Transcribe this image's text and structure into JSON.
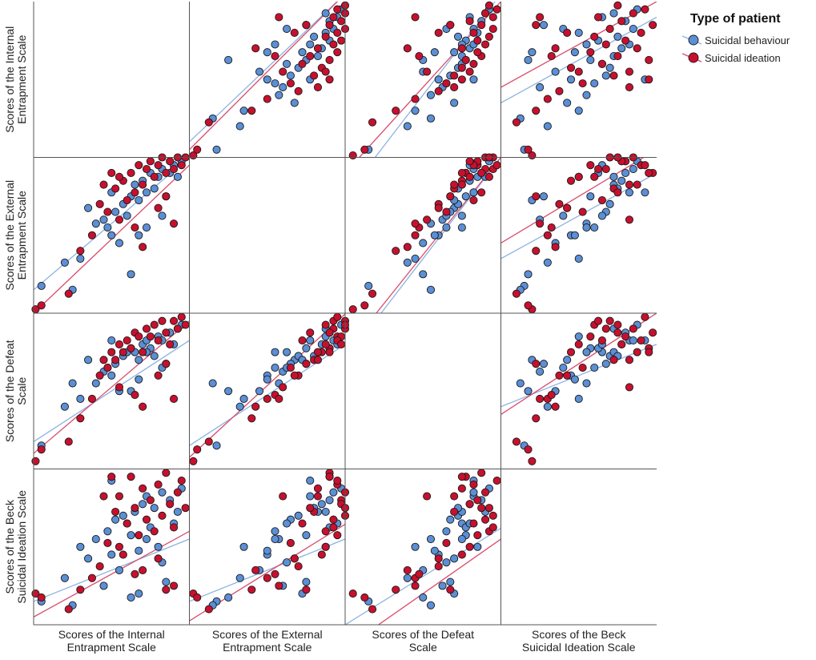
{
  "chart_data": {
    "type": "scatter",
    "subtype": "scatterplot-matrix",
    "variables": [
      {
        "id": "internal",
        "label_lines": [
          "Scores of the Internal",
          "Entrapment Scale"
        ]
      },
      {
        "id": "external",
        "label_lines": [
          "Scores of the External",
          "Entrapment Scale"
        ]
      },
      {
        "id": "defeat",
        "label_lines": [
          "Scores of the Defeat",
          "Scale"
        ]
      },
      {
        "id": "beck",
        "label_lines": [
          "Scores of the Beck",
          "Suicidal Ideation Scale"
        ]
      }
    ],
    "ranges": {
      "internal": [
        0,
        40
      ],
      "external": [
        0,
        40
      ],
      "defeat": [
        0,
        40
      ],
      "beck": [
        0,
        40
      ]
    },
    "legend": {
      "title": "Type of patient",
      "position": "top-right"
    },
    "grid": false,
    "series": [
      {
        "name": "Suicidal behaviour",
        "color": "#5b8fd6",
        "line_color": "#8cb4e3",
        "fits": {
          "internal|external": [
            6.0,
            0.85
          ],
          "internal|defeat": [
            7.0,
            0.65
          ],
          "internal|beck": [
            6.0,
            0.4
          ],
          "external|internal": [
            4.0,
            0.95
          ],
          "external|defeat": [
            6.0,
            0.65
          ],
          "external|beck": [
            6.0,
            0.4
          ],
          "defeat|internal": [
            -10.0,
            1.3
          ],
          "defeat|external": [
            -12.0,
            1.3
          ],
          "defeat|beck": [
            0.0,
            0.62
          ],
          "beck|internal": [
            14.0,
            0.55
          ],
          "beck|external": [
            14.0,
            0.55
          ],
          "beck|defeat": [
            16.0,
            0.4
          ]
        },
        "points": [
          {
            "internal": 2.0,
            "external": 7.0,
            "defeat": 6.0,
            "beck": 6.0
          },
          {
            "internal": 8.0,
            "external": 13.0,
            "defeat": 16.0,
            "beck": 12.0
          },
          {
            "internal": 10.0,
            "external": 6.0,
            "defeat": 22.0,
            "beck": 5.0
          },
          {
            "internal": 12.0,
            "external": 14.0,
            "defeat": 18.0,
            "beck": 20.0
          },
          {
            "internal": 14.0,
            "external": 27.0,
            "defeat": 28.0,
            "beck": 17.0
          },
          {
            "internal": 16.0,
            "external": 23.0,
            "defeat": 22.0,
            "beck": 22.0
          },
          {
            "internal": 18.0,
            "external": 24.0,
            "defeat": 25.0,
            "beck": 10.0
          },
          {
            "internal": 19.0,
            "external": 22.0,
            "defeat": 26.0,
            "beck": 24.0
          },
          {
            "internal": 20.0,
            "external": 20.0,
            "defeat": 24.0,
            "beck": 18.0
          },
          {
            "internal": 21.0,
            "external": 26.0,
            "defeat": 27.0,
            "beck": 27.0
          },
          {
            "internal": 22.0,
            "external": 18.0,
            "defeat": 20.0,
            "beck": 14.0
          },
          {
            "internal": 23.0,
            "external": 28.0,
            "defeat": 29.0,
            "beck": 28.0
          },
          {
            "internal": 24.0,
            "external": 25.0,
            "defeat": 30.0,
            "beck": 26.0
          },
          {
            "internal": 25.0,
            "external": 30.0,
            "defeat": 31.0,
            "beck": 23.0
          },
          {
            "internal": 26.0,
            "external": 33.0,
            "defeat": 30.0,
            "beck": 29.0
          },
          {
            "internal": 27.0,
            "external": 29.0,
            "defeat": 28.0,
            "beck": 8.0
          },
          {
            "internal": 28.0,
            "external": 34.0,
            "defeat": 32.0,
            "beck": 31.0
          },
          {
            "internal": 29.0,
            "external": 31.0,
            "defeat": 33.0,
            "beck": 33.0
          },
          {
            "internal": 30.0,
            "external": 36.0,
            "defeat": 31.0,
            "beck": 25.0
          },
          {
            "internal": 31.0,
            "external": 32.0,
            "defeat": 29.0,
            "beck": 30.0
          },
          {
            "internal": 32.0,
            "external": 35.0,
            "defeat": 34.0,
            "beck": 20.0
          },
          {
            "internal": 33.0,
            "external": 37.0,
            "defeat": 33.0,
            "beck": 34.0
          },
          {
            "internal": 34.0,
            "external": 30.0,
            "defeat": 27.0,
            "beck": 11.0
          },
          {
            "internal": 35.0,
            "external": 36.0,
            "defeat": 35.0,
            "beck": 32.0
          },
          {
            "internal": 36.0,
            "external": 38.0,
            "defeat": 32.0,
            "beck": 26.0
          },
          {
            "internal": 37.0,
            "external": 35.0,
            "defeat": 36.0,
            "beck": 29.0
          },
          {
            "internal": 38.0,
            "external": 39.0,
            "defeat": 37.0,
            "beck": 35.0
          },
          {
            "internal": 33.0,
            "external": 25.0,
            "defeat": 26.0,
            "beck": 16.0
          },
          {
            "internal": 27.0,
            "external": 20.0,
            "defeat": 23.0,
            "beck": 19.0
          },
          {
            "internal": 20.0,
            "external": 31.0,
            "defeat": 33.0,
            "beck": 37.0
          },
          {
            "internal": 25.0,
            "external": 10.0,
            "defeat": 20.0,
            "beck": 7.0
          },
          {
            "internal": 29.0,
            "external": 22.0,
            "defeat": 30.0,
            "beck": 22.0
          }
        ]
      },
      {
        "name": "Suicidal ideation",
        "color": "#c8102e",
        "line_color": "#d94c6b",
        "fits": {
          "internal|external": [
            0.0,
            0.95
          ],
          "internal|defeat": [
            4.0,
            0.85
          ],
          "internal|beck": [
            2.0,
            0.55
          ],
          "external|internal": [
            2.0,
            1.0
          ],
          "external|defeat": [
            3.0,
            0.92
          ],
          "external|beck": [
            1.0,
            0.62
          ],
          "defeat|internal": [
            -4.0,
            1.1
          ],
          "defeat|external": [
            -10.0,
            1.25
          ],
          "defeat|beck": [
            -6.0,
            0.7
          ],
          "beck|internal": [
            18.0,
            0.55
          ],
          "beck|external": [
            18.0,
            0.6
          ],
          "beck|defeat": [
            14.0,
            0.65
          ]
        },
        "points": [
          {
            "internal": 0.5,
            "external": 1.0,
            "defeat": 2.0,
            "beck": 8.0
          },
          {
            "internal": 2.0,
            "external": 2.0,
            "defeat": 5.0,
            "beck": 7.0
          },
          {
            "internal": 9.0,
            "external": 5.0,
            "defeat": 7.0,
            "beck": 4.0
          },
          {
            "internal": 12.0,
            "external": 16.0,
            "defeat": 13.0,
            "beck": 9.0
          },
          {
            "internal": 15.0,
            "external": 20.0,
            "defeat": 18.0,
            "beck": 12.0
          },
          {
            "internal": 17.0,
            "external": 28.0,
            "defeat": 24.0,
            "beck": 15.0
          },
          {
            "internal": 19.0,
            "external": 26.0,
            "defeat": 26.0,
            "beck": 21.0
          },
          {
            "internal": 21.0,
            "external": 32.0,
            "defeat": 28.0,
            "beck": 29.0
          },
          {
            "internal": 22.0,
            "external": 24.0,
            "defeat": 21.0,
            "beck": 33.0
          },
          {
            "internal": 23.0,
            "external": 34.0,
            "defeat": 30.0,
            "beck": 18.0
          },
          {
            "internal": 24.0,
            "external": 29.0,
            "defeat": 33.0,
            "beck": 26.0
          },
          {
            "internal": 25.0,
            "external": 36.0,
            "defeat": 31.0,
            "beck": 38.0
          },
          {
            "internal": 26.0,
            "external": 31.0,
            "defeat": 35.0,
            "beck": 30.0
          },
          {
            "internal": 27.0,
            "external": 38.0,
            "defeat": 34.0,
            "beck": 23.0
          },
          {
            "internal": 28.0,
            "external": 33.0,
            "defeat": 30.0,
            "beck": 35.0
          },
          {
            "internal": 29.0,
            "external": 37.0,
            "defeat": 36.0,
            "beck": 27.0
          },
          {
            "internal": 30.0,
            "external": 39.0,
            "defeat": 34.0,
            "beck": 32.0
          },
          {
            "internal": 31.0,
            "external": 35.0,
            "defeat": 37.0,
            "beck": 24.0
          },
          {
            "internal": 32.0,
            "external": 38.0,
            "defeat": 33.0,
            "beck": 36.0
          },
          {
            "internal": 33.0,
            "external": 40.0,
            "defeat": 38.0,
            "beck": 28.0
          },
          {
            "internal": 34.0,
            "external": 36.0,
            "defeat": 35.0,
            "beck": 39.0
          },
          {
            "internal": 35.0,
            "external": 39.0,
            "defeat": 32.0,
            "beck": 31.0
          },
          {
            "internal": 36.0,
            "external": 37.0,
            "defeat": 38.0,
            "beck": 25.0
          },
          {
            "internal": 37.0,
            "external": 40.0,
            "defeat": 36.0,
            "beck": 34.0
          },
          {
            "internal": 38.0,
            "external": 38.0,
            "defeat": 39.0,
            "beck": 37.0
          },
          {
            "internal": 39.0,
            "external": 40.0,
            "defeat": 37.0,
            "beck": 30.0
          },
          {
            "internal": 26.0,
            "external": 22.0,
            "defeat": 19.0,
            "beck": 13.0
          },
          {
            "internal": 32.0,
            "external": 27.0,
            "defeat": 24.0,
            "beck": 17.0
          },
          {
            "internal": 18.0,
            "external": 33.0,
            "defeat": 28.0,
            "beck": 33.0
          },
          {
            "internal": 36.0,
            "external": 23.0,
            "defeat": 18.0,
            "beck": 10.0
          },
          {
            "internal": 22.0,
            "external": 35.0,
            "defeat": 32.0,
            "beck": 20.0
          },
          {
            "internal": 34.0,
            "external": 30.0,
            "defeat": 27.0,
            "beck": 9.0
          },
          {
            "internal": 28.0,
            "external": 17.0,
            "defeat": 16.0,
            "beck": 14.0
          },
          {
            "internal": 20.0,
            "external": 36.0,
            "defeat": 30.0,
            "beck": 38.0
          }
        ]
      }
    ]
  }
}
